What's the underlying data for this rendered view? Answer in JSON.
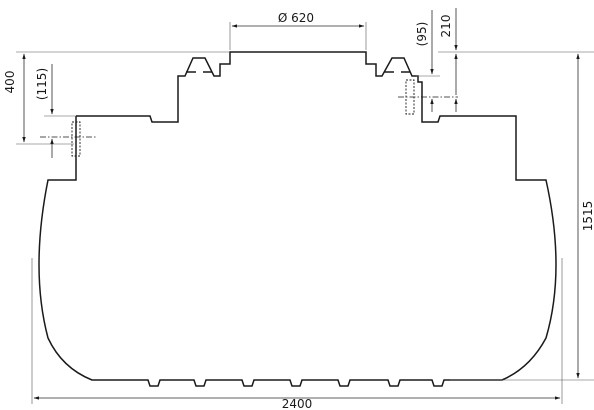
{
  "drawing": {
    "dimensions": {
      "overall_width": "2400",
      "overall_height": "1515",
      "port_diameter": "Ø 620",
      "riser_height": "400",
      "inlet_offset": "(115)",
      "outlet_offset": "(95)",
      "outlet_drop": "210"
    }
  }
}
